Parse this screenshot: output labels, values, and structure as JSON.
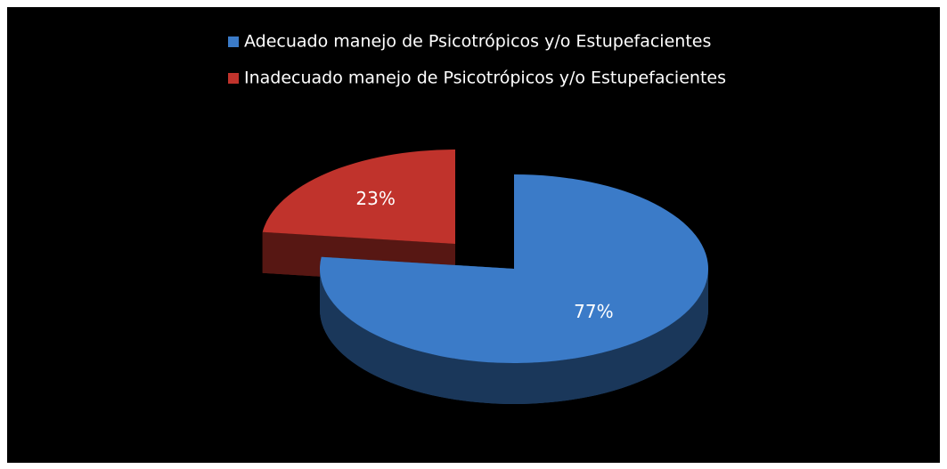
{
  "chart_data": {
    "type": "pie",
    "categories": [
      "Adecuado manejo de Psicotrópicos y/o Estupefacientes",
      "Inadecuado manejo de Psicotrópicos y/o Estupefacientes"
    ],
    "values": [
      77,
      23
    ],
    "value_labels": [
      "77%",
      "23%"
    ],
    "colors": [
      "#3b7bc8",
      "#c0332c"
    ],
    "legend": "top"
  }
}
